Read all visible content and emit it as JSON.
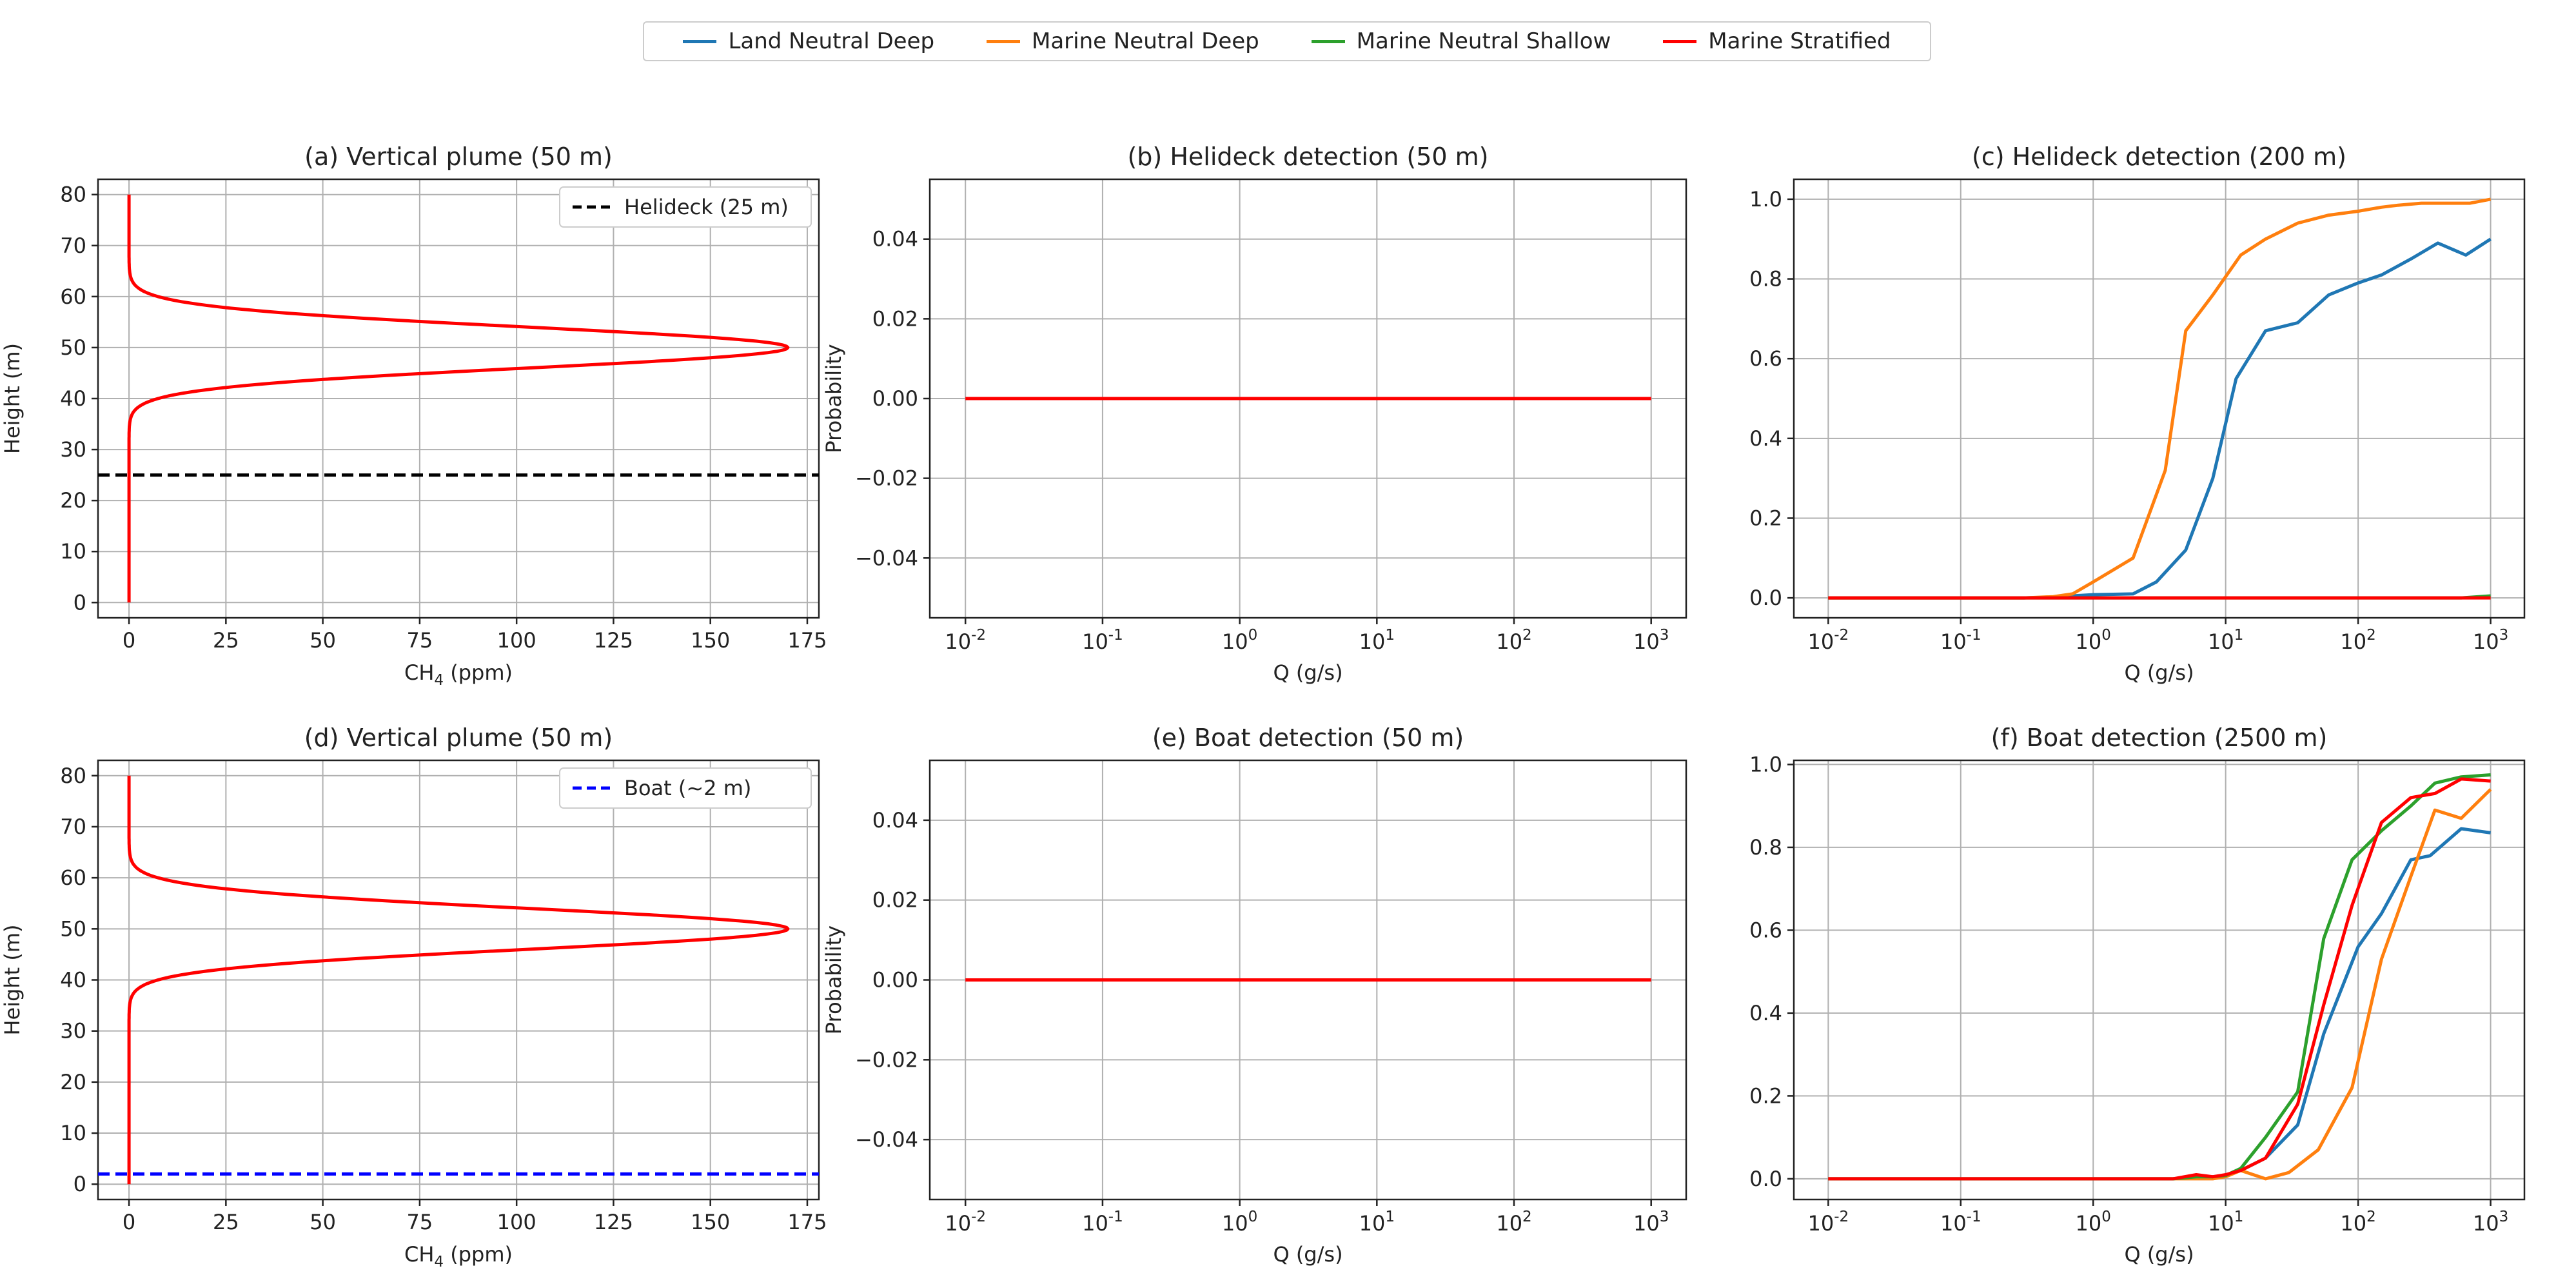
{
  "legend": {
    "entries": [
      {
        "name": "Land Neutral Deep",
        "color": "#1f77b4"
      },
      {
        "name": "Marine Neutral Deep",
        "color": "#ff7f0e"
      },
      {
        "name": "Marine Neutral Shallow",
        "color": "#2ca02c"
      },
      {
        "name": "Marine Stratified",
        "color": "#ff0000"
      }
    ],
    "placement": "top-center"
  },
  "chart_data": [
    {
      "id": "a",
      "type": "line",
      "title": "(a) Vertical plume (50 m)",
      "xlabel": "CH",
      "xlabel_sub": "4",
      "xlabel_suffix": " (ppm)",
      "ylabel": "Height (m)",
      "xlim": [
        -8,
        178
      ],
      "ylim": [
        -3,
        83
      ],
      "xticks": [
        0,
        25,
        50,
        75,
        100,
        125,
        150,
        175
      ],
      "yticks": [
        0,
        10,
        20,
        30,
        40,
        50,
        60,
        70,
        80
      ],
      "grid": true,
      "series": [
        {
          "color": "#ff0000",
          "profile": {
            "peak_ppm": 170,
            "center_m": 50,
            "sigma_m": 4,
            "y_range": [
              0,
              80
            ]
          }
        }
      ],
      "hline": {
        "y": 25,
        "color": "#000000",
        "style": "dashed",
        "label": "Helideck (25 m)"
      },
      "legend_placement": "top-right"
    },
    {
      "id": "b",
      "type": "line",
      "title": "(b) Helideck detection (50 m)",
      "xlabel": "Q (g/s)",
      "ylabel": "Probability",
      "xscale": "log",
      "xlim": [
        0.0055,
        1800
      ],
      "ylim": [
        -0.055,
        0.055
      ],
      "xticks": [
        0.01,
        0.1,
        1,
        10,
        100,
        1000
      ],
      "xtick_exponents": [
        "-2",
        "-1",
        "0",
        "1",
        "2",
        "3"
      ],
      "yticks": [
        -0.04,
        -0.02,
        0.0,
        0.02,
        0.04
      ],
      "ytick_labels": [
        "−0.04",
        "−0.02",
        "0.00",
        "0.02",
        "0.04"
      ],
      "grid": true,
      "series": [
        {
          "color": "#ff0000",
          "x": [
            0.01,
            1000
          ],
          "y": [
            0,
            0
          ]
        }
      ]
    },
    {
      "id": "c",
      "type": "line",
      "title": "(c) Helideck detection (200 m)",
      "xlabel": "Q (g/s)",
      "ylabel": "",
      "xscale": "log",
      "xlim": [
        0.0055,
        1800
      ],
      "ylim": [
        -0.05,
        1.05
      ],
      "xticks": [
        0.01,
        0.1,
        1,
        10,
        100,
        1000
      ],
      "xtick_exponents": [
        "-2",
        "-1",
        "0",
        "1",
        "2",
        "3"
      ],
      "yticks": [
        0.0,
        0.2,
        0.4,
        0.6,
        0.8,
        1.0
      ],
      "ytick_labels": [
        "0.0",
        "0.2",
        "0.4",
        "0.6",
        "0.8",
        "1.0"
      ],
      "grid": true,
      "series": [
        {
          "name": "Land Neutral Deep",
          "color": "#1f77b4",
          "x": [
            0.01,
            0.3,
            0.5,
            0.7,
            1,
            2,
            3,
            5,
            8,
            12,
            20,
            35,
            60,
            100,
            150,
            250,
            400,
            650,
            1000
          ],
          "y": [
            0,
            0,
            0.002,
            0.005,
            0.008,
            0.01,
            0.04,
            0.12,
            0.3,
            0.55,
            0.67,
            0.69,
            0.76,
            0.79,
            0.81,
            0.85,
            0.89,
            0.86,
            0.9
          ]
        },
        {
          "name": "Marine Neutral Deep",
          "color": "#ff7f0e",
          "x": [
            0.01,
            0.3,
            0.5,
            0.7,
            1,
            2,
            3.5,
            5,
            8,
            13,
            20,
            35,
            60,
            100,
            150,
            200,
            300,
            500,
            700,
            1000
          ],
          "y": [
            0,
            0,
            0.003,
            0.01,
            0.04,
            0.1,
            0.32,
            0.67,
            0.76,
            0.86,
            0.9,
            0.94,
            0.96,
            0.97,
            0.98,
            0.985,
            0.99,
            0.99,
            0.99,
            1.0
          ]
        },
        {
          "name": "Marine Neutral Shallow",
          "color": "#2ca02c",
          "x": [
            0.01,
            600,
            1000
          ],
          "y": [
            0,
            0,
            0.005
          ]
        },
        {
          "name": "Marine Stratified",
          "color": "#ff0000",
          "x": [
            0.01,
            1000
          ],
          "y": [
            0,
            0
          ]
        }
      ]
    },
    {
      "id": "d",
      "type": "line",
      "title": "(d) Vertical plume (50 m)",
      "xlabel": "CH",
      "xlabel_sub": "4",
      "xlabel_suffix": " (ppm)",
      "ylabel": "Height (m)",
      "xlim": [
        -8,
        178
      ],
      "ylim": [
        -3,
        83
      ],
      "xticks": [
        0,
        25,
        50,
        75,
        100,
        125,
        150,
        175
      ],
      "yticks": [
        0,
        10,
        20,
        30,
        40,
        50,
        60,
        70,
        80
      ],
      "grid": true,
      "series": [
        {
          "color": "#ff0000",
          "profile": {
            "peak_ppm": 170,
            "center_m": 50,
            "sigma_m": 4,
            "y_range": [
              0,
              80
            ]
          }
        }
      ],
      "hline": {
        "y": 2,
        "color": "#0000ff",
        "style": "dashed",
        "label": "Boat (~2 m)"
      },
      "legend_placement": "top-right"
    },
    {
      "id": "e",
      "type": "line",
      "title": "(e) Boat detection (50 m)",
      "xlabel": "Q (g/s)",
      "ylabel": "Probability",
      "xscale": "log",
      "xlim": [
        0.0055,
        1800
      ],
      "ylim": [
        -0.055,
        0.055
      ],
      "xticks": [
        0.01,
        0.1,
        1,
        10,
        100,
        1000
      ],
      "xtick_exponents": [
        "-2",
        "-1",
        "0",
        "1",
        "2",
        "3"
      ],
      "yticks": [
        -0.04,
        -0.02,
        0.0,
        0.02,
        0.04
      ],
      "ytick_labels": [
        "−0.04",
        "−0.02",
        "0.00",
        "0.02",
        "0.04"
      ],
      "grid": true,
      "series": [
        {
          "color": "#ff0000",
          "x": [
            0.01,
            1000
          ],
          "y": [
            0,
            0
          ]
        }
      ]
    },
    {
      "id": "f",
      "type": "line",
      "title": "(f) Boat detection (2500 m)",
      "xlabel": "Q (g/s)",
      "ylabel": "",
      "xscale": "log",
      "xlim": [
        0.0055,
        1800
      ],
      "ylim": [
        -0.05,
        1.01
      ],
      "xticks": [
        0.01,
        0.1,
        1,
        10,
        100,
        1000
      ],
      "xtick_exponents": [
        "-2",
        "-1",
        "0",
        "1",
        "2",
        "3"
      ],
      "yticks": [
        0.0,
        0.2,
        0.4,
        0.6,
        0.8,
        1.0
      ],
      "ytick_labels": [
        "0.0",
        "0.2",
        "0.4",
        "0.6",
        "0.8",
        "1.0"
      ],
      "grid": true,
      "series": [
        {
          "name": "Land Neutral Deep",
          "color": "#1f77b4",
          "x": [
            0.01,
            4,
            6,
            8,
            10,
            13,
            20,
            35,
            55,
            100,
            150,
            250,
            350,
            600,
            1000
          ],
          "y": [
            0,
            0,
            0.005,
            0.005,
            0.008,
            0.02,
            0.05,
            0.13,
            0.35,
            0.56,
            0.64,
            0.77,
            0.78,
            0.845,
            0.835
          ]
        },
        {
          "name": "Marine Neutral Deep",
          "color": "#ff7f0e",
          "x": [
            0.01,
            8,
            10,
            13,
            20,
            30,
            50,
            90,
            150,
            250,
            380,
            600,
            1000
          ],
          "y": [
            0,
            0,
            0.005,
            0.02,
            0.0,
            0.015,
            0.07,
            0.22,
            0.53,
            0.73,
            0.89,
            0.87,
            0.94
          ]
        },
        {
          "name": "Marine Neutral Shallow",
          "color": "#2ca02c",
          "x": [
            0.01,
            4,
            6,
            8,
            10,
            13,
            20,
            35,
            55,
            90,
            150,
            250,
            380,
            600,
            1000
          ],
          "y": [
            0,
            0,
            0.005,
            0.005,
            0.008,
            0.025,
            0.1,
            0.21,
            0.58,
            0.77,
            0.84,
            0.9,
            0.955,
            0.97,
            0.975
          ]
        },
        {
          "name": "Marine Stratified",
          "color": "#ff0000",
          "x": [
            0.01,
            4,
            6,
            8,
            10,
            13,
            20,
            35,
            55,
            90,
            150,
            250,
            380,
            600,
            1000
          ],
          "y": [
            0,
            0,
            0.01,
            0.005,
            0.01,
            0.02,
            0.05,
            0.18,
            0.42,
            0.66,
            0.86,
            0.92,
            0.93,
            0.965,
            0.96
          ]
        }
      ]
    }
  ]
}
